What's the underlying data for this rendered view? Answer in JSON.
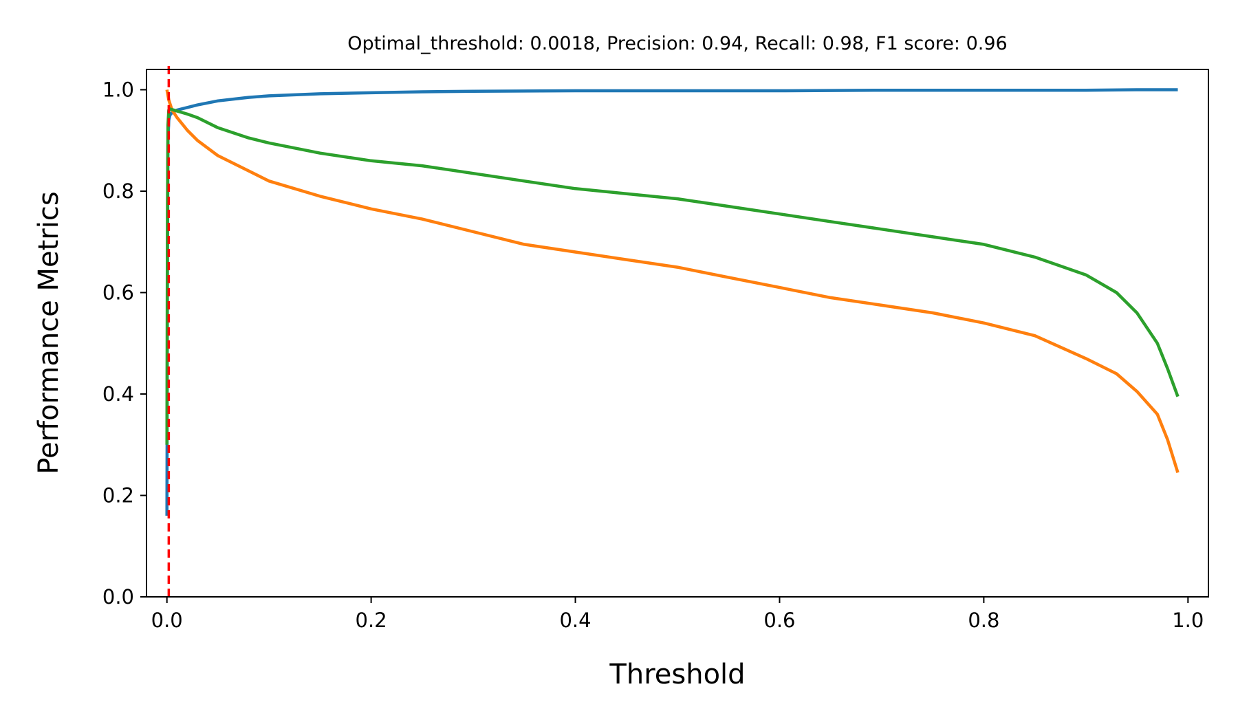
{
  "chart_data": {
    "type": "line",
    "title": "Optimal_threshold: 0.0018, Precision: 0.94, Recall: 0.98, F1 score: 0.96",
    "xlabel": "Threshold",
    "ylabel": "Performance Metrics",
    "xlim": [
      -0.02,
      1.02
    ],
    "ylim": [
      0.0,
      1.04
    ],
    "xticks": [
      "0.0",
      "0.2",
      "0.4",
      "0.6",
      "0.8",
      "1.0"
    ],
    "yticks": [
      "0.0",
      "0.2",
      "0.4",
      "0.6",
      "0.8",
      "1.0"
    ],
    "grid": false,
    "legend": false,
    "series": [
      {
        "color": "#1f77b4",
        "x": [
          0.0,
          0.0005,
          0.001,
          0.0018,
          0.003,
          0.005,
          0.01,
          0.02,
          0.03,
          0.05,
          0.08,
          0.1,
          0.15,
          0.2,
          0.25,
          0.3,
          0.4,
          0.5,
          0.6,
          0.7,
          0.8,
          0.9,
          0.95,
          0.99
        ],
        "y": [
          0.16,
          0.6,
          0.9,
          0.94,
          0.95,
          0.955,
          0.96,
          0.965,
          0.97,
          0.978,
          0.985,
          0.988,
          0.992,
          0.994,
          0.996,
          0.997,
          0.998,
          0.998,
          0.998,
          0.999,
          0.999,
          0.999,
          1.0,
          1.0
        ]
      },
      {
        "color": "#ff7f0e",
        "x": [
          0.0,
          0.0018,
          0.005,
          0.01,
          0.02,
          0.03,
          0.05,
          0.08,
          0.1,
          0.15,
          0.2,
          0.25,
          0.3,
          0.35,
          0.4,
          0.45,
          0.5,
          0.55,
          0.6,
          0.65,
          0.7,
          0.75,
          0.8,
          0.85,
          0.9,
          0.93,
          0.95,
          0.97,
          0.98,
          0.99
        ],
        "y": [
          1.0,
          0.98,
          0.96,
          0.945,
          0.92,
          0.9,
          0.87,
          0.84,
          0.82,
          0.79,
          0.765,
          0.745,
          0.72,
          0.695,
          0.68,
          0.665,
          0.65,
          0.63,
          0.61,
          0.59,
          0.575,
          0.56,
          0.54,
          0.515,
          0.47,
          0.44,
          0.405,
          0.36,
          0.31,
          0.245
        ]
      },
      {
        "color": "#2ca02c",
        "x": [
          0.0,
          0.0005,
          0.001,
          0.0018,
          0.003,
          0.005,
          0.01,
          0.02,
          0.03,
          0.05,
          0.08,
          0.1,
          0.15,
          0.2,
          0.25,
          0.3,
          0.35,
          0.4,
          0.45,
          0.5,
          0.55,
          0.6,
          0.65,
          0.7,
          0.75,
          0.8,
          0.85,
          0.9,
          0.93,
          0.95,
          0.97,
          0.98,
          0.99
        ],
        "y": [
          0.3,
          0.75,
          0.93,
          0.96,
          0.962,
          0.961,
          0.958,
          0.952,
          0.945,
          0.925,
          0.905,
          0.895,
          0.875,
          0.86,
          0.85,
          0.835,
          0.82,
          0.805,
          0.795,
          0.785,
          0.77,
          0.755,
          0.74,
          0.725,
          0.71,
          0.695,
          0.67,
          0.635,
          0.6,
          0.56,
          0.5,
          0.45,
          0.395
        ]
      }
    ],
    "vline": {
      "x": 0.0018,
      "color": "#ff0000",
      "style": "dashed"
    }
  }
}
